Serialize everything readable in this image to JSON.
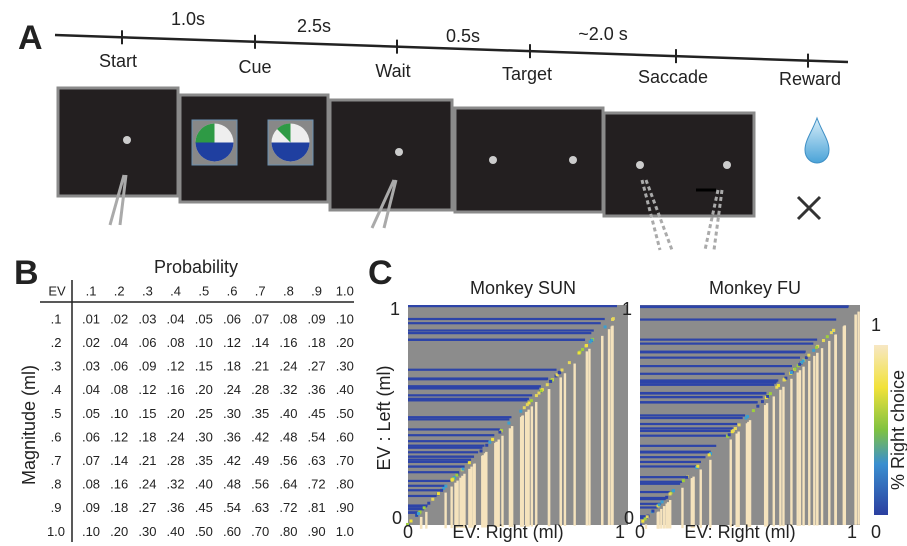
{
  "panel_labels": [
    "A",
    "B",
    "C"
  ],
  "timeline": {
    "events": [
      "Start",
      "Cue",
      "Wait",
      "Target",
      "Saccade",
      "Reward"
    ],
    "durations": [
      "1.0s",
      "2.5s",
      "0.5s",
      "~2.0 s"
    ]
  },
  "table": {
    "corner": "EV",
    "column_title": "Probability",
    "row_title": "Magnitude (ml)",
    "columns": [
      ".1",
      ".2",
      ".3",
      ".4",
      ".5",
      ".6",
      ".7",
      ".8",
      ".9",
      "1.0"
    ],
    "rows": [
      {
        "label": ".1",
        "cells": [
          ".01",
          ".02",
          ".03",
          ".04",
          ".05",
          ".06",
          ".07",
          ".08",
          ".09",
          ".10"
        ]
      },
      {
        "label": ".2",
        "cells": [
          ".02",
          ".04",
          ".06",
          ".08",
          ".10",
          ".12",
          ".14",
          ".16",
          ".18",
          ".20"
        ]
      },
      {
        "label": ".3",
        "cells": [
          ".03",
          ".06",
          ".09",
          ".12",
          ".15",
          ".18",
          ".21",
          ".24",
          ".27",
          ".30"
        ]
      },
      {
        "label": ".4",
        "cells": [
          ".04",
          ".08",
          ".12",
          ".16",
          ".20",
          ".24",
          ".28",
          ".32",
          ".36",
          ".40"
        ]
      },
      {
        "label": ".5",
        "cells": [
          ".05",
          ".10",
          ".15",
          ".20",
          ".25",
          ".30",
          ".35",
          ".40",
          ".45",
          ".50"
        ]
      },
      {
        "label": ".6",
        "cells": [
          ".06",
          ".12",
          ".18",
          ".24",
          ".30",
          ".36",
          ".42",
          ".48",
          ".54",
          ".60"
        ]
      },
      {
        "label": ".7",
        "cells": [
          ".07",
          ".14",
          ".21",
          ".28",
          ".35",
          ".42",
          ".49",
          ".56",
          ".63",
          ".70"
        ]
      },
      {
        "label": ".8",
        "cells": [
          ".08",
          ".16",
          ".24",
          ".32",
          ".40",
          ".48",
          ".56",
          ".64",
          ".72",
          ".80"
        ]
      },
      {
        "label": ".9",
        "cells": [
          ".09",
          ".18",
          ".27",
          ".36",
          ".45",
          ".54",
          ".63",
          ".72",
          ".81",
          ".90"
        ]
      },
      {
        "label": "1.0",
        "cells": [
          ".10",
          ".20",
          ".30",
          ".40",
          ".50",
          ".60",
          ".70",
          ".80",
          ".90",
          "1.0"
        ]
      }
    ]
  },
  "heatmaps": {
    "panels": [
      {
        "title": "Monkey SUN"
      },
      {
        "title": "Monkey FU"
      }
    ],
    "x_label": "EV: Right (ml)",
    "y_label": "EV : Left (ml)",
    "x_ticks": [
      "0",
      "1"
    ],
    "y_ticks": [
      "0",
      "1"
    ],
    "colorbar": {
      "label": "% Right choice",
      "ticks": [
        "0",
        "1"
      ]
    }
  }
}
